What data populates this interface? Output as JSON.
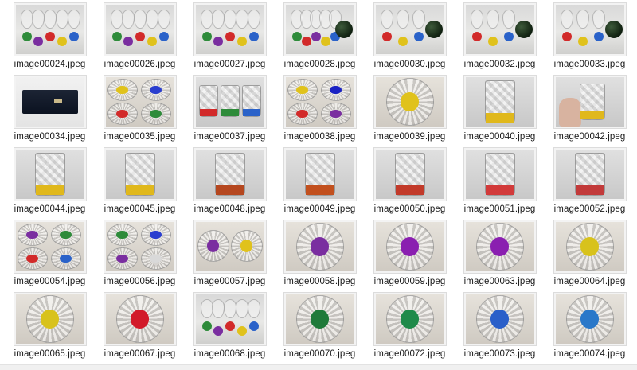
{
  "window": {
    "title": ""
  },
  "files": [
    {
      "name": "image00024.jpeg",
      "kind": "goblets",
      "colors": [
        "#2e8b3a",
        "#7a2ea0",
        "#d22a2a",
        "#e0c21c",
        "#2a62c9"
      ],
      "ball": false
    },
    {
      "name": "image00026.jpeg",
      "kind": "goblets",
      "colors": [
        "#2e8b3a",
        "#7a2ea0",
        "#d22a2a",
        "#e0c21c",
        "#2a62c9"
      ],
      "ball": false
    },
    {
      "name": "image00027.jpeg",
      "kind": "goblets",
      "colors": [
        "#2e8b3a",
        "#7a2ea0",
        "#d22a2a",
        "#e0c21c",
        "#2a62c9"
      ],
      "ball": false
    },
    {
      "name": "image00028.jpeg",
      "kind": "goblets",
      "colors": [
        "#2e8b3a",
        "#d22a2a",
        "#7a2ea0",
        "#e0c21c",
        "#2a62c9"
      ],
      "ball": true
    },
    {
      "name": "image00030.jpeg",
      "kind": "goblets",
      "colors": [
        "#d22a2a",
        "#e0c21c",
        "#2a62c9"
      ],
      "ball": true
    },
    {
      "name": "image00032.jpeg",
      "kind": "goblets",
      "colors": [
        "#d22a2a",
        "#e0c21c",
        "#2a62c9"
      ],
      "ball": true
    },
    {
      "name": "image00033.jpeg",
      "kind": "goblets",
      "colors": [
        "#d22a2a",
        "#e0c21c",
        "#2a62c9"
      ],
      "ball": true
    },
    {
      "name": "image00034.jpeg",
      "kind": "box",
      "colors": [],
      "ball": false
    },
    {
      "name": "image00035.jpeg",
      "kind": "bowls4",
      "colors": [
        "#e0c21c",
        "#2a3ecf",
        "#d22a2a",
        "#2e8b3a"
      ],
      "ball": false
    },
    {
      "name": "image00037.jpeg",
      "kind": "tumblers",
      "colors": [
        "#d22a2a",
        "#2e8b3a",
        "#2a62c9"
      ],
      "ball": false
    },
    {
      "name": "image00038.jpeg",
      "kind": "bowls4",
      "colors": [
        "#e0c21c",
        "#1a22c4",
        "#d22a2a",
        "#7a2ea0"
      ],
      "ball": false
    },
    {
      "name": "image00039.jpeg",
      "kind": "bowl1",
      "colors": [
        "#e0c21c"
      ],
      "ball": false
    },
    {
      "name": "image00040.jpeg",
      "kind": "tumblers",
      "colors": [
        "#e0b81c"
      ],
      "ball": false
    },
    {
      "name": "image00042.jpeg",
      "kind": "hand",
      "colors": [
        "#e0b81c"
      ],
      "ball": false
    },
    {
      "name": "image00044.jpeg",
      "kind": "tumblers",
      "colors": [
        "#e0b81c"
      ],
      "ball": false
    },
    {
      "name": "image00045.jpeg",
      "kind": "tumblers",
      "colors": [
        "#e0b81c"
      ],
      "ball": false
    },
    {
      "name": "image00048.jpeg",
      "kind": "tumblers",
      "colors": [
        "#b5471f"
      ],
      "ball": false
    },
    {
      "name": "image00049.jpeg",
      "kind": "tumblers",
      "colors": [
        "#c2501e"
      ],
      "ball": false
    },
    {
      "name": "image00050.jpeg",
      "kind": "tumblers",
      "colors": [
        "#c23a2a"
      ],
      "ball": false
    },
    {
      "name": "image00051.jpeg",
      "kind": "tumblers",
      "colors": [
        "#d23a3a"
      ],
      "ball": false
    },
    {
      "name": "image00052.jpeg",
      "kind": "tumblers",
      "colors": [
        "#c23a3a"
      ],
      "ball": false
    },
    {
      "name": "image00054.jpeg",
      "kind": "bowls4",
      "colors": [
        "#7a2ea0",
        "#2e8b3a",
        "#d22a2a",
        "#2a62c9"
      ],
      "ball": false
    },
    {
      "name": "image00056.jpeg",
      "kind": "bowls4",
      "colors": [
        "#2e8b3a",
        "#2a3ecf",
        "#7a2ea0",
        "#d9d9d9"
      ],
      "ball": false
    },
    {
      "name": "image00057.jpeg",
      "kind": "bowls2",
      "colors": [
        "#7a2ea0",
        "#e0c21c"
      ],
      "ball": false
    },
    {
      "name": "image00058.jpeg",
      "kind": "bowl1",
      "colors": [
        "#7a2ea0"
      ],
      "ball": false
    },
    {
      "name": "image00059.jpeg",
      "kind": "bowl1",
      "colors": [
        "#8a1fb0"
      ],
      "ball": false
    },
    {
      "name": "image00063.jpeg",
      "kind": "bowl1",
      "colors": [
        "#8a1fb0"
      ],
      "ball": false
    },
    {
      "name": "image00064.jpeg",
      "kind": "bowl1",
      "colors": [
        "#d8c21c"
      ],
      "ball": false
    },
    {
      "name": "image00065.jpeg",
      "kind": "bowl1",
      "colors": [
        "#d8c21c"
      ],
      "ball": false
    },
    {
      "name": "image00067.jpeg",
      "kind": "bowl1",
      "colors": [
        "#d21a2a"
      ],
      "ball": false
    },
    {
      "name": "image00068.jpeg",
      "kind": "goblets",
      "colors": [
        "#2e8b3a",
        "#7a2ea0",
        "#d22a2a",
        "#e0c21c",
        "#2a62c9"
      ],
      "ball": false
    },
    {
      "name": "image00070.jpeg",
      "kind": "bowl1",
      "colors": [
        "#1f7a3a"
      ],
      "ball": false
    },
    {
      "name": "image00072.jpeg",
      "kind": "bowl1",
      "colors": [
        "#1f8a4a"
      ],
      "ball": false
    },
    {
      "name": "image00073.jpeg",
      "kind": "bowl1",
      "colors": [
        "#2a5fc9"
      ],
      "ball": false
    },
    {
      "name": "image00074.jpeg",
      "kind": "bowl1",
      "colors": [
        "#2a78c9"
      ],
      "ball": false
    }
  ]
}
